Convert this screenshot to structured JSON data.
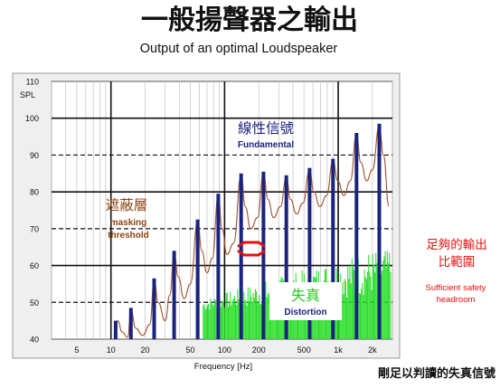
{
  "page": {
    "title_cn": "一般揚聲器之輸出",
    "title_en": "Output of an optimal Loudspeaker",
    "bottom_caption": "剛足以判讀的失真信號"
  },
  "colors": {
    "fundamental": "#1a237e",
    "masking": "#a0522d",
    "distortion": "#22dd22",
    "headroom_text": "#e81010",
    "label_blue": "#1a237e",
    "label_brown": "#8b4513"
  },
  "chart_data": {
    "type": "bar",
    "title": "Output of an optimal Loudspeaker",
    "xlabel": "Frequency [Hz]",
    "ylabel": "SPL",
    "x_scale": "log",
    "xlim": [
      3,
      3000
    ],
    "ylim": [
      40,
      110
    ],
    "x_ticks": [
      {
        "value": 5,
        "label": "5"
      },
      {
        "value": 10,
        "label": "10"
      },
      {
        "value": 20,
        "label": "20"
      },
      {
        "value": 50,
        "label": "50"
      },
      {
        "value": 100,
        "label": "100"
      },
      {
        "value": 200,
        "label": "200"
      },
      {
        "value": 500,
        "label": "500"
      },
      {
        "value": 1000,
        "label": "1k"
      },
      {
        "value": 2000,
        "label": "2k"
      }
    ],
    "y_ticks": [
      40,
      50,
      60,
      70,
      80,
      90,
      100,
      110
    ],
    "grid": true,
    "fundamental_bars": [
      {
        "x": 11,
        "y": 45
      },
      {
        "x": 15,
        "y": 48.5
      },
      {
        "x": 24,
        "y": 56.5
      },
      {
        "x": 36,
        "y": 64
      },
      {
        "x": 58,
        "y": 72.5
      },
      {
        "x": 88,
        "y": 79.5
      },
      {
        "x": 140,
        "y": 85
      },
      {
        "x": 220,
        "y": 85.5
      },
      {
        "x": 350,
        "y": 84.5
      },
      {
        "x": 560,
        "y": 86.5
      },
      {
        "x": 900,
        "y": 89
      },
      {
        "x": 1450,
        "y": 96
      },
      {
        "x": 2300,
        "y": 98.5
      }
    ],
    "masking_threshold": [
      [
        11,
        41
      ],
      [
        11.5,
        45
      ],
      [
        12.5,
        42
      ],
      [
        14,
        40.5
      ],
      [
        15,
        48
      ],
      [
        16.5,
        43
      ],
      [
        19,
        41
      ],
      [
        22,
        44
      ],
      [
        24,
        56
      ],
      [
        26,
        50
      ],
      [
        30,
        45
      ],
      [
        33,
        52
      ],
      [
        36,
        63.5
      ],
      [
        39,
        57
      ],
      [
        44,
        51
      ],
      [
        50,
        55
      ],
      [
        58,
        72
      ],
      [
        63,
        64
      ],
      [
        70,
        58
      ],
      [
        78,
        62
      ],
      [
        88,
        79
      ],
      [
        95,
        70
      ],
      [
        105,
        63
      ],
      [
        120,
        66
      ],
      [
        140,
        84.5
      ],
      [
        152,
        76
      ],
      [
        170,
        70
      ],
      [
        195,
        73
      ],
      [
        220,
        85
      ],
      [
        240,
        78
      ],
      [
        270,
        73
      ],
      [
        310,
        76
      ],
      [
        350,
        84
      ],
      [
        380,
        78
      ],
      [
        430,
        74
      ],
      [
        490,
        77
      ],
      [
        560,
        86
      ],
      [
        610,
        80
      ],
      [
        690,
        76
      ],
      [
        790,
        79
      ],
      [
        900,
        88.5
      ],
      [
        990,
        83
      ],
      [
        1120,
        79
      ],
      [
        1280,
        83
      ],
      [
        1450,
        95.5
      ],
      [
        1580,
        88
      ],
      [
        1780,
        83
      ],
      [
        2000,
        86
      ],
      [
        2300,
        98
      ],
      [
        2500,
        90
      ],
      [
        2800,
        76
      ]
    ],
    "distortion_range": {
      "x_start": 65,
      "x_end": 2900,
      "y_min": 46,
      "y_max": 64
    },
    "annotations": {
      "fundamental": {
        "cn": "線性信號",
        "en": "Fundamental"
      },
      "masking": {
        "cn": "遮蔽層",
        "en": [
          "masking",
          "threshold"
        ]
      },
      "distortion": {
        "cn": "失真",
        "en": "Distortion"
      },
      "headroom": {
        "cn": [
          "足夠的輸出",
          "比範圍"
        ],
        "en": [
          "Sufficient safety",
          "headroom"
        ]
      }
    }
  }
}
